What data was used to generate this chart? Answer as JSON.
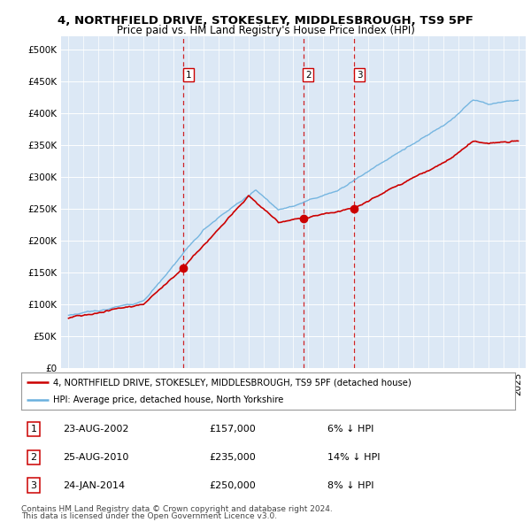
{
  "title": "4, NORTHFIELD DRIVE, STOKESLEY, MIDDLESBROUGH, TS9 5PF",
  "subtitle": "Price paid vs. HM Land Registry's House Price Index (HPI)",
  "legend_line1": "4, NORTHFIELD DRIVE, STOKESLEY, MIDDLESBROUGH, TS9 5PF (detached house)",
  "legend_line2": "HPI: Average price, detached house, North Yorkshire",
  "transactions": [
    {
      "num": 1,
      "date": "23-AUG-2002",
      "price": 157000,
      "pct": "6%",
      "dir": "↓",
      "year_x": 2002.65
    },
    {
      "num": 2,
      "date": "25-AUG-2010",
      "price": 235000,
      "pct": "14%",
      "dir": "↓",
      "year_x": 2010.65
    },
    {
      "num": 3,
      "date": "24-JAN-2014",
      "price": 250000,
      "pct": "8%",
      "dir": "↓",
      "year_x": 2014.07
    }
  ],
  "footnote1": "Contains HM Land Registry data © Crown copyright and database right 2024.",
  "footnote2": "This data is licensed under the Open Government Licence v3.0.",
  "hpi_color": "#6ab0de",
  "price_color": "#cc0000",
  "vline_color": "#cc0000",
  "background_color": "#dce8f5",
  "ylim": [
    0,
    520000
  ],
  "yticks": [
    0,
    50000,
    100000,
    150000,
    200000,
    250000,
    300000,
    350000,
    400000,
    450000,
    500000
  ],
  "xlim_start": 1994.5,
  "xlim_end": 2025.5
}
